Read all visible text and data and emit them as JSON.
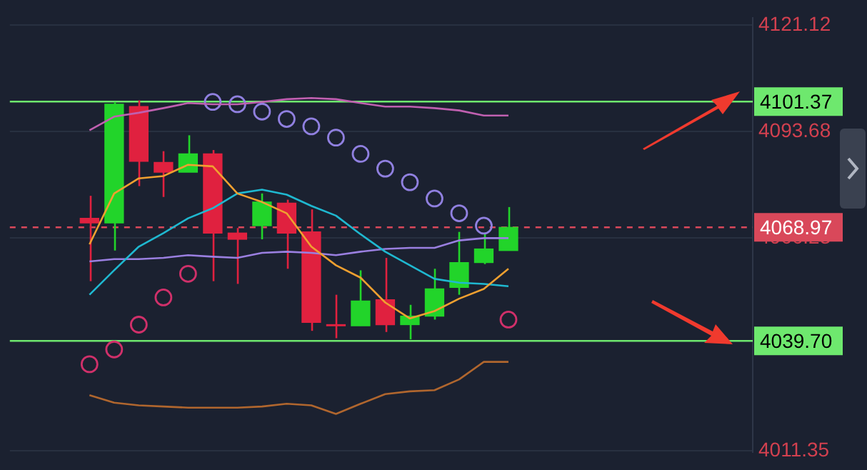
{
  "chart_data": {
    "type": "candlestick",
    "categories": [
      null,
      null,
      null,
      null,
      null,
      null,
      null,
      null,
      null,
      null,
      null,
      null,
      null,
      null,
      null,
      null,
      null,
      null
    ],
    "ohlc": [
      [
        4071.3,
        4077.1,
        4055.1,
        4070.1
      ],
      [
        4070.1,
        4101.3,
        4063.0,
        4100.7
      ],
      [
        4100.1,
        4101.7,
        4079.6,
        4086.0
      ],
      [
        4085.7,
        4088.6,
        4076.8,
        4083.2
      ],
      [
        4083.2,
        4092.7,
        4083.2,
        4087.9
      ],
      [
        4087.9,
        4088.9,
        4055.1,
        4067.5
      ],
      [
        4067.5,
        4068.8,
        4054.4,
        4065.9
      ],
      [
        4069.4,
        4077.7,
        4065.9,
        4075.5
      ],
      [
        4075.2,
        4076.1,
        4058.3,
        4067.5
      ],
      [
        4067.8,
        4073.6,
        4042.3,
        4044.5
      ],
      [
        4043.9,
        4051.6,
        4040.4,
        4043.6
      ],
      [
        4043.6,
        4057.9,
        4043.6,
        4050.0
      ],
      [
        4050.3,
        4061.1,
        4042.0,
        4043.9
      ],
      [
        4043.9,
        4049.0,
        4040.1,
        4046.1
      ],
      [
        4046.1,
        4058.3,
        4045.2,
        4053.1
      ],
      [
        4053.5,
        4067.8,
        4051.6,
        4059.9
      ],
      [
        4059.9,
        4067.2,
        4059.5,
        4063.4
      ],
      [
        4063.0,
        4074.2,
        4063.0,
        4068.97
      ]
    ],
    "colors": [
      "#e0213f",
      "#22d42a",
      "#e0213f",
      "#e0213f",
      "#22d42a",
      "#e0213f",
      "#e0213f",
      "#22d42a",
      "#e0213f",
      "#e0213f",
      "#e0213f",
      "#22d42a",
      "#e0213f",
      "#22d42a",
      "#22d42a",
      "#22d42a",
      "#22d42a",
      "#22d42a"
    ],
    "series": [
      {
        "type": "line",
        "color": "#c060b0",
        "values": [
          4094.0,
          4097.5,
          4098.5,
          4099.7,
          4101.0,
          4100.7,
          4100.7,
          4101.3,
          4102.0,
          4102.3,
          4102.0,
          4101.0,
          4100.1,
          4100.1,
          4099.7,
          4099.1,
          4097.8,
          4097.8
        ]
      },
      {
        "type": "line",
        "color": "#f0a030",
        "values": [
          4064.6,
          4077.7,
          4081.6,
          4082.2,
          4085.1,
          4084.7,
          4077.7,
          4075.5,
          4072.6,
          4064.0,
          4059.2,
          4056.0,
          4049.6,
          4045.5,
          4047.4,
          4050.6,
          4053.1,
          4058.3
        ]
      },
      {
        "type": "line",
        "color": "#1fb8d0",
        "values": [
          4051.6,
          4057.9,
          4064.0,
          4067.5,
          4071.3,
          4073.9,
          4077.7,
          4078.7,
          4077.4,
          4074.5,
          4072.0,
          4067.2,
          4062.7,
          4059.2,
          4055.7,
          4054.7,
          4054.4,
          4053.8
        ]
      },
      {
        "type": "line",
        "color": "#9a7fe0",
        "values": [
          4060.2,
          4060.8,
          4060.8,
          4061.1,
          4061.8,
          4061.4,
          4061.1,
          4062.4,
          4062.7,
          4062.4,
          4061.8,
          4062.7,
          4063.4,
          4063.7,
          4063.7,
          4065.6,
          4066.2,
          4066.2
        ]
      },
      {
        "type": "line",
        "color": "#b0662e",
        "values": [
          4025.7,
          4023.8,
          4023.1,
          4022.8,
          4022.5,
          4022.5,
          4022.5,
          4022.8,
          4023.5,
          4023.1,
          4020.9,
          4023.5,
          4026.0,
          4026.7,
          4027.0,
          4029.8,
          4034.3,
          4034.3
        ]
      },
      {
        "type": "scatter",
        "color": "#d0306a",
        "marker": "circle",
        "values": [
          4033.7,
          4037.5,
          4043.9,
          4050.9,
          4057.0,
          null,
          null,
          null,
          null,
          null,
          null,
          null,
          null,
          null,
          null,
          null,
          null,
          4045.2
        ]
      },
      {
        "type": "scatter",
        "color": "#9080e0",
        "marker": "circle",
        "values": [
          null,
          null,
          null,
          null,
          null,
          4101.3,
          4100.7,
          4098.8,
          4096.9,
          4095.0,
          4092.1,
          4087.9,
          4084.1,
          4080.6,
          4076.4,
          4072.6,
          4069.4,
          null
        ]
      }
    ],
    "ref_lines": [
      {
        "axis": "y",
        "value": 4101.37,
        "label": "4101.37",
        "color": "#6ee86e",
        "line_style": "solid"
      },
      {
        "axis": "y",
        "value": 4068.97,
        "label": "4068.97",
        "color": "#d9485a",
        "line_style": "dashed"
      },
      {
        "axis": "y",
        "value": 4039.7,
        "label": "4039.70",
        "color": "#6ee86e",
        "line_style": "solid"
      }
    ],
    "ylim": [
      4011,
      4123
    ],
    "yticks": [
      4121.12,
      4093.68,
      4066.23,
      4011.35
    ],
    "grid": "y",
    "legend": false,
    "tick_labels": "y"
  }
}
